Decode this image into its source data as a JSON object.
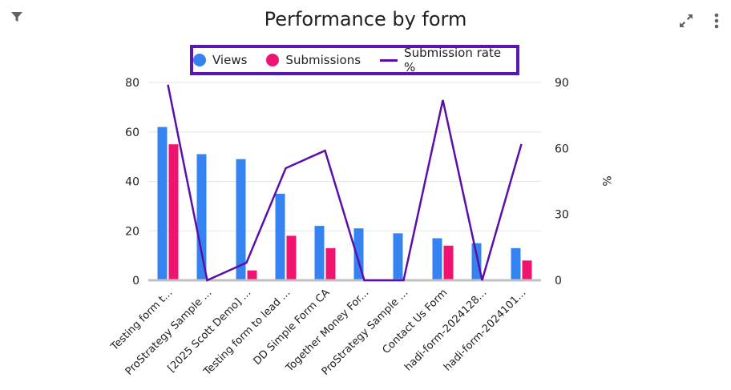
{
  "header": {
    "title": "Performance by form",
    "filter_icon": "filter-icon",
    "expand_icon": "expand-icon",
    "more_icon": "more-vertical-icon"
  },
  "colors": {
    "views": "#3583f0",
    "submissions": "#f0136f",
    "rate": "#5b0fa8",
    "legend_border": "#5a16b4"
  },
  "legend": {
    "views": "Views",
    "submissions": "Submissions",
    "rate": "Submission rate %"
  },
  "chart_data": {
    "type": "bar",
    "title": "Performance by form",
    "categories": [
      "Testing form t...",
      "ProStrategy Sample ...",
      "[2025 Scott Demo] ...",
      "Testing form to lead ...",
      "DD Simple Form CA",
      "Together Money For...",
      "ProStrategy Sample ...",
      "Contact Us Form",
      "hadi-form-2024128...",
      "hadi-form-2024101..."
    ],
    "series": [
      {
        "name": "Views",
        "type": "bar",
        "axis": "left",
        "values": [
          62,
          51,
          49,
          35,
          22,
          21,
          19,
          17,
          15,
          13
        ]
      },
      {
        "name": "Submissions",
        "type": "bar",
        "axis": "left",
        "values": [
          55,
          0,
          4,
          18,
          13,
          0,
          0,
          14,
          0,
          8
        ]
      },
      {
        "name": "Submission rate %",
        "type": "line",
        "axis": "right",
        "values": [
          89,
          0,
          8,
          51,
          59,
          0,
          0,
          82,
          0,
          62
        ]
      }
    ],
    "y_left": {
      "label": "",
      "ylim": [
        0,
        80
      ],
      "ticks": [
        0,
        20,
        40,
        60,
        80
      ]
    },
    "y_right": {
      "label": "%",
      "ylim": [
        0,
        90
      ],
      "ticks": [
        0,
        30,
        60,
        90
      ]
    },
    "legend_position": "top",
    "grid": true
  }
}
